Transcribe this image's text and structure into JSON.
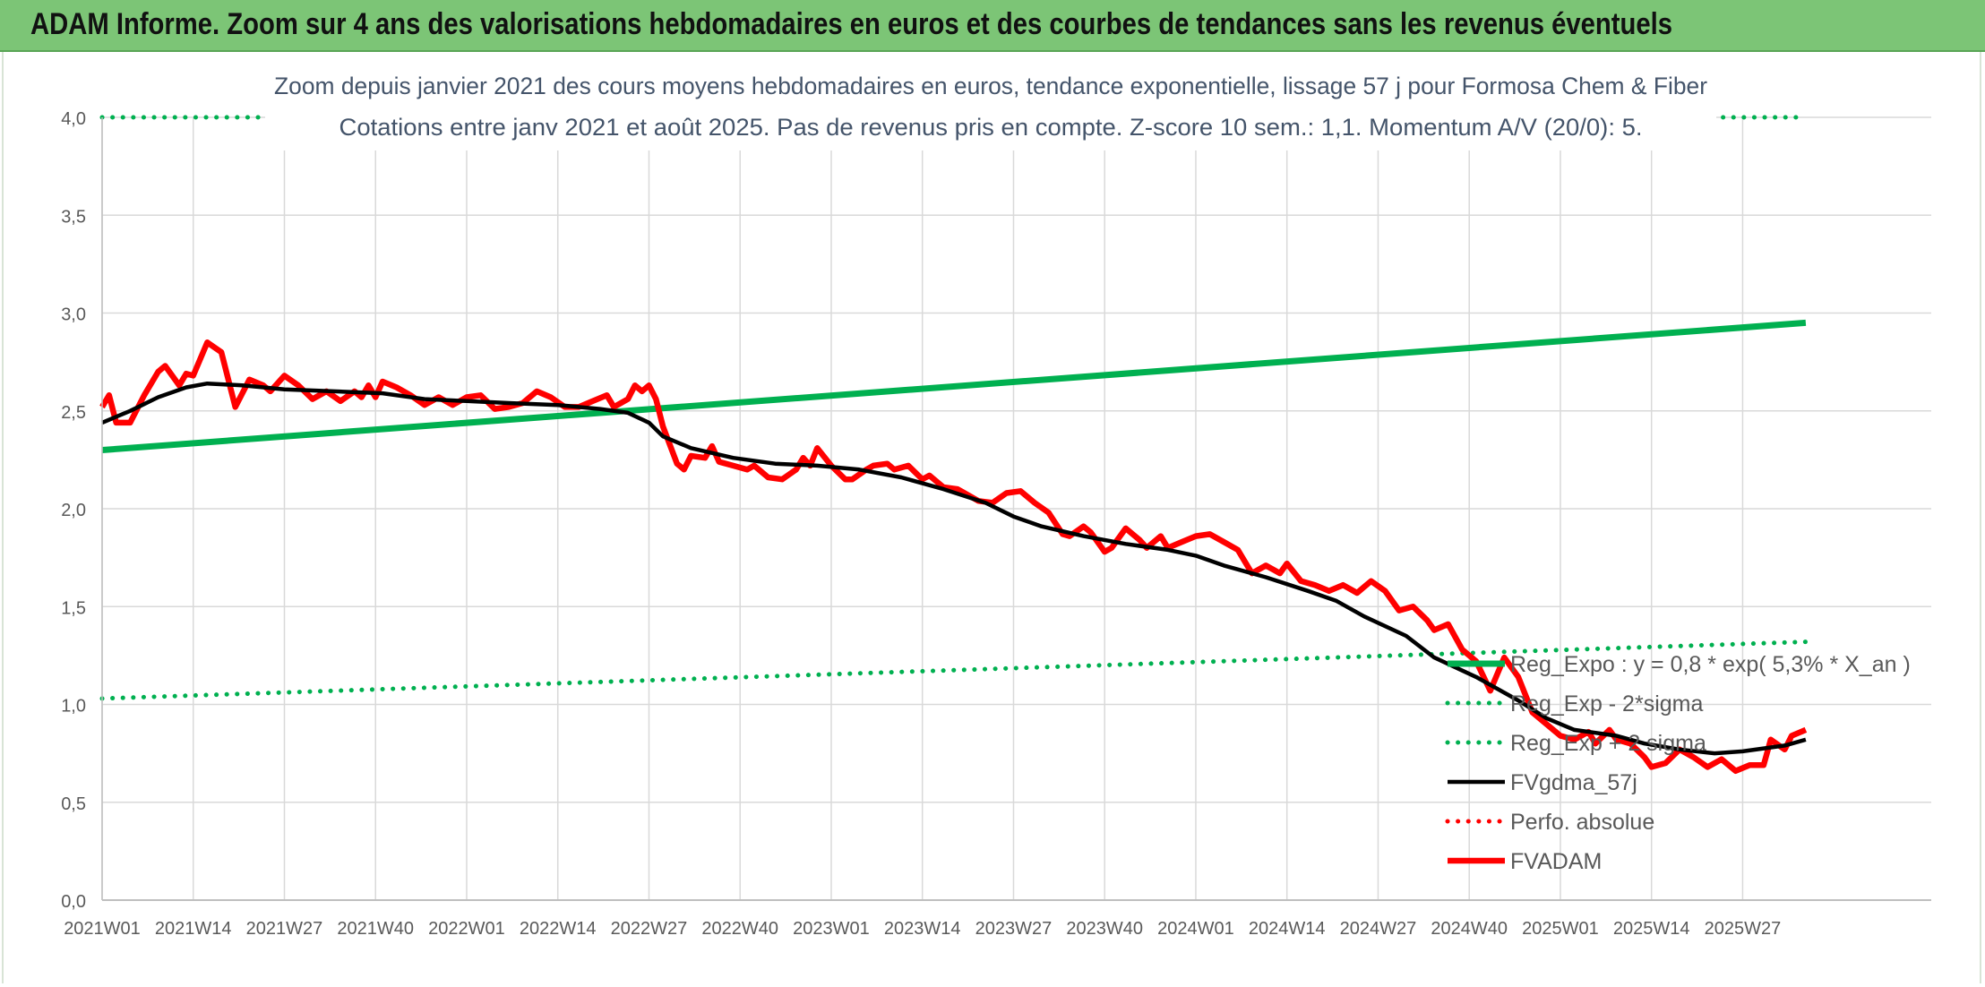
{
  "banner": {
    "title": "ADAM Informe. Zoom sur 4 ans des valorisations hebdomadaires en euros et des courbes de tendances sans les revenus éventuels"
  },
  "chart_data": {
    "type": "line",
    "title": "Zoom depuis janvier 2021 des cours moyens hebdomadaires en euros, tendance exponentielle, lissage 57 j pour Formosa Chem & Fiber",
    "subtitle": "Cotations entre janv 2021 et août 2025. Pas de revenus pris en compte. Z-score 10 sem.: 1,1. Momentum A/V (20/0): 5.",
    "xlabel": "",
    "ylabel": "",
    "ylim": [
      0,
      4
    ],
    "grid": true,
    "legend_position": "bottom-right",
    "x_range_weeks": [
      0,
      190
    ],
    "x_ticks": [
      {
        "label": "2021W01",
        "week": 0
      },
      {
        "label": "2021W14",
        "week": 13
      },
      {
        "label": "2021W27",
        "week": 26
      },
      {
        "label": "2021W40",
        "week": 39
      },
      {
        "label": "2022W01",
        "week": 52
      },
      {
        "label": "2022W14",
        "week": 65
      },
      {
        "label": "2022W27",
        "week": 78
      },
      {
        "label": "2022W40",
        "week": 91
      },
      {
        "label": "2023W01",
        "week": 104
      },
      {
        "label": "2023W14",
        "week": 117
      },
      {
        "label": "2023W27",
        "week": 130
      },
      {
        "label": "2023W40",
        "week": 143
      },
      {
        "label": "2024W01",
        "week": 156
      },
      {
        "label": "2024W14",
        "week": 169
      },
      {
        "label": "2024W27",
        "week": 182
      },
      {
        "label": "2024W40",
        "week": 195
      },
      {
        "label": "2025W01",
        "week": 208
      },
      {
        "label": "2025W14",
        "week": 221
      },
      {
        "label": "2025W27",
        "week": 234
      }
    ],
    "y_ticks": [
      {
        "label": "0,0",
        "value": 0
      },
      {
        "label": "0,5",
        "value": 0.5
      },
      {
        "label": "1,0",
        "value": 1
      },
      {
        "label": "1,5",
        "value": 1.5
      },
      {
        "label": "2,0",
        "value": 2
      },
      {
        "label": "2,5",
        "value": 2.5
      },
      {
        "label": "3,0",
        "value": 3
      },
      {
        "label": "3,5",
        "value": 3.5
      },
      {
        "label": "4,0",
        "value": 4
      }
    ],
    "series": [
      {
        "name": "Reg_Expo : y = 0,8 * exp( 5,3% *  X_an )",
        "color": "#00b050",
        "style": "solid-thick",
        "points": [
          [
            0,
            2.3
          ],
          [
            243,
            2.95
          ]
        ]
      },
      {
        "name": "Reg_Exp - 2*sigma",
        "color": "#00b050",
        "style": "dotted",
        "points": [
          [
            0,
            1.03
          ],
          [
            243,
            1.32
          ]
        ]
      },
      {
        "name": "Reg_Exp + 2 sigma",
        "color": "#00b050",
        "style": "dotted",
        "points": [
          [
            0,
            4.0
          ],
          [
            243,
            4.0
          ]
        ]
      },
      {
        "name": "FVgdma_57j",
        "color": "#000000",
        "style": "solid",
        "points": [
          [
            0,
            2.44
          ],
          [
            4,
            2.5
          ],
          [
            8,
            2.57
          ],
          [
            12,
            2.62
          ],
          [
            15,
            2.64
          ],
          [
            20,
            2.63
          ],
          [
            26,
            2.61
          ],
          [
            33,
            2.6
          ],
          [
            40,
            2.59
          ],
          [
            46,
            2.56
          ],
          [
            52,
            2.55
          ],
          [
            58,
            2.54
          ],
          [
            65,
            2.53
          ],
          [
            71,
            2.51
          ],
          [
            75,
            2.49
          ],
          [
            78,
            2.44
          ],
          [
            80,
            2.37
          ],
          [
            84,
            2.31
          ],
          [
            90,
            2.26
          ],
          [
            96,
            2.23
          ],
          [
            102,
            2.22
          ],
          [
            108,
            2.2
          ],
          [
            114,
            2.16
          ],
          [
            120,
            2.1
          ],
          [
            126,
            2.03
          ],
          [
            130,
            1.96
          ],
          [
            134,
            1.91
          ],
          [
            140,
            1.86
          ],
          [
            146,
            1.82
          ],
          [
            152,
            1.79
          ],
          [
            156,
            1.76
          ],
          [
            160,
            1.71
          ],
          [
            166,
            1.65
          ],
          [
            172,
            1.58
          ],
          [
            176,
            1.53
          ],
          [
            180,
            1.45
          ],
          [
            186,
            1.35
          ],
          [
            190,
            1.24
          ],
          [
            196,
            1.14
          ],
          [
            202,
            1.02
          ],
          [
            206,
            0.93
          ],
          [
            210,
            0.87
          ],
          [
            216,
            0.84
          ],
          [
            220,
            0.8
          ],
          [
            225,
            0.77
          ],
          [
            230,
            0.75
          ],
          [
            234,
            0.76
          ],
          [
            240,
            0.79
          ],
          [
            243,
            0.82
          ]
        ]
      },
      {
        "name": "Perfo. absolue",
        "color": "#ff0000",
        "style": "dotted",
        "points": []
      },
      {
        "name": "FVADAM",
        "color": "#ff0000",
        "style": "solid-thick",
        "points": [
          [
            0,
            2.52
          ],
          [
            1,
            2.58
          ],
          [
            2,
            2.44
          ],
          [
            4,
            2.44
          ],
          [
            6,
            2.58
          ],
          [
            8,
            2.7
          ],
          [
            9,
            2.73
          ],
          [
            11,
            2.63
          ],
          [
            12,
            2.69
          ],
          [
            13,
            2.68
          ],
          [
            15,
            2.85
          ],
          [
            17,
            2.8
          ],
          [
            19,
            2.52
          ],
          [
            21,
            2.66
          ],
          [
            23,
            2.63
          ],
          [
            24,
            2.6
          ],
          [
            26,
            2.68
          ],
          [
            28,
            2.63
          ],
          [
            30,
            2.56
          ],
          [
            32,
            2.6
          ],
          [
            34,
            2.55
          ],
          [
            36,
            2.6
          ],
          [
            37,
            2.57
          ],
          [
            38,
            2.63
          ],
          [
            39,
            2.57
          ],
          [
            40,
            2.65
          ],
          [
            42,
            2.62
          ],
          [
            44,
            2.58
          ],
          [
            46,
            2.53
          ],
          [
            48,
            2.57
          ],
          [
            50,
            2.53
          ],
          [
            52,
            2.57
          ],
          [
            54,
            2.58
          ],
          [
            56,
            2.51
          ],
          [
            58,
            2.52
          ],
          [
            60,
            2.54
          ],
          [
            62,
            2.6
          ],
          [
            64,
            2.57
          ],
          [
            66,
            2.52
          ],
          [
            68,
            2.52
          ],
          [
            70,
            2.55
          ],
          [
            72,
            2.58
          ],
          [
            73,
            2.52
          ],
          [
            75,
            2.56
          ],
          [
            76,
            2.63
          ],
          [
            77,
            2.6
          ],
          [
            78,
            2.63
          ],
          [
            79,
            2.56
          ],
          [
            80,
            2.42
          ],
          [
            82,
            2.23
          ],
          [
            83,
            2.2
          ],
          [
            84,
            2.27
          ],
          [
            86,
            2.26
          ],
          [
            87,
            2.32
          ],
          [
            88,
            2.24
          ],
          [
            90,
            2.22
          ],
          [
            92,
            2.2
          ],
          [
            93,
            2.22
          ],
          [
            95,
            2.16
          ],
          [
            97,
            2.15
          ],
          [
            99,
            2.2
          ],
          [
            100,
            2.26
          ],
          [
            101,
            2.22
          ],
          [
            102,
            2.31
          ],
          [
            104,
            2.22
          ],
          [
            106,
            2.15
          ],
          [
            107,
            2.15
          ],
          [
            109,
            2.2
          ],
          [
            110,
            2.22
          ],
          [
            112,
            2.23
          ],
          [
            113,
            2.2
          ],
          [
            115,
            2.22
          ],
          [
            117,
            2.15
          ],
          [
            118,
            2.17
          ],
          [
            120,
            2.11
          ],
          [
            122,
            2.1
          ],
          [
            123,
            2.08
          ],
          [
            125,
            2.04
          ],
          [
            127,
            2.03
          ],
          [
            129,
            2.08
          ],
          [
            131,
            2.09
          ],
          [
            133,
            2.03
          ],
          [
            135,
            1.98
          ],
          [
            137,
            1.87
          ],
          [
            138,
            1.86
          ],
          [
            140,
            1.91
          ],
          [
            141,
            1.88
          ],
          [
            143,
            1.78
          ],
          [
            144,
            1.8
          ],
          [
            146,
            1.9
          ],
          [
            148,
            1.84
          ],
          [
            149,
            1.8
          ],
          [
            151,
            1.86
          ],
          [
            152,
            1.8
          ],
          [
            154,
            1.83
          ],
          [
            156,
            1.86
          ],
          [
            158,
            1.87
          ],
          [
            160,
            1.83
          ],
          [
            162,
            1.79
          ],
          [
            164,
            1.67
          ],
          [
            166,
            1.71
          ],
          [
            168,
            1.67
          ],
          [
            169,
            1.72
          ],
          [
            171,
            1.63
          ],
          [
            173,
            1.61
          ],
          [
            175,
            1.58
          ],
          [
            177,
            1.61
          ],
          [
            179,
            1.57
          ],
          [
            181,
            1.63
          ],
          [
            183,
            1.58
          ],
          [
            185,
            1.48
          ],
          [
            187,
            1.5
          ],
          [
            189,
            1.43
          ],
          [
            190,
            1.38
          ],
          [
            192,
            1.41
          ],
          [
            194,
            1.28
          ],
          [
            196,
            1.22
          ],
          [
            198,
            1.07
          ],
          [
            200,
            1.24
          ],
          [
            202,
            1.14
          ],
          [
            204,
            0.96
          ],
          [
            206,
            0.9
          ],
          [
            208,
            0.84
          ],
          [
            210,
            0.82
          ],
          [
            212,
            0.86
          ],
          [
            213,
            0.8
          ],
          [
            215,
            0.87
          ],
          [
            216,
            0.82
          ],
          [
            218,
            0.8
          ],
          [
            220,
            0.73
          ],
          [
            221,
            0.68
          ],
          [
            223,
            0.7
          ],
          [
            225,
            0.77
          ],
          [
            227,
            0.73
          ],
          [
            229,
            0.68
          ],
          [
            231,
            0.72
          ],
          [
            233,
            0.66
          ],
          [
            235,
            0.69
          ],
          [
            237,
            0.69
          ],
          [
            238,
            0.82
          ],
          [
            240,
            0.77
          ],
          [
            241,
            0.84
          ],
          [
            243,
            0.87
          ]
        ]
      }
    ]
  }
}
